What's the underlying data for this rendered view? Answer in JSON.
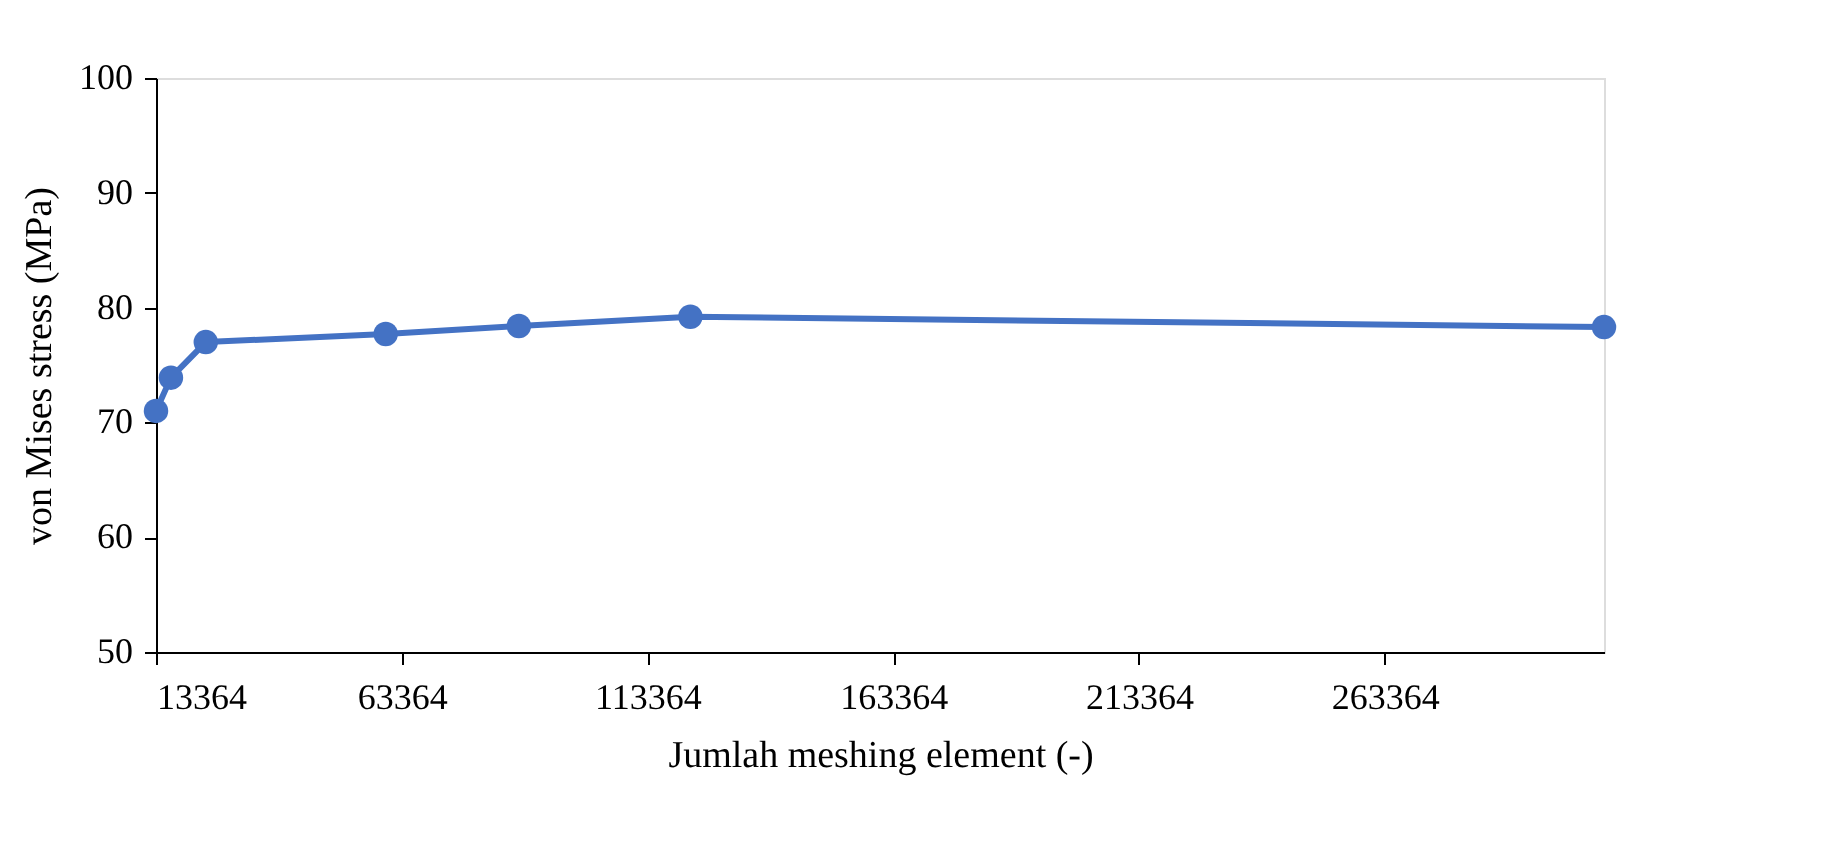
{
  "chart_data": {
    "type": "line",
    "xlabel": "Jumlah meshing element (-)",
    "ylabel": "von Mises stress (MPa)",
    "x": [
      13364,
      16400,
      23500,
      60100,
      87200,
      122100,
      308000
    ],
    "series": [
      {
        "color": "#4472c4",
        "values": [
          71.0,
          73.9,
          77.0,
          77.7,
          78.4,
          79.2,
          78.3
        ]
      }
    ],
    "xlim": [
      13364,
      308000
    ],
    "xticks": [
      13364,
      63364,
      113364,
      163364,
      213364,
      263364
    ],
    "ylim": [
      50,
      100
    ],
    "yticks": [
      50,
      60,
      70,
      80,
      90,
      100
    ],
    "grid": false,
    "legend": false,
    "marker": "circle",
    "line_style": "solid"
  }
}
